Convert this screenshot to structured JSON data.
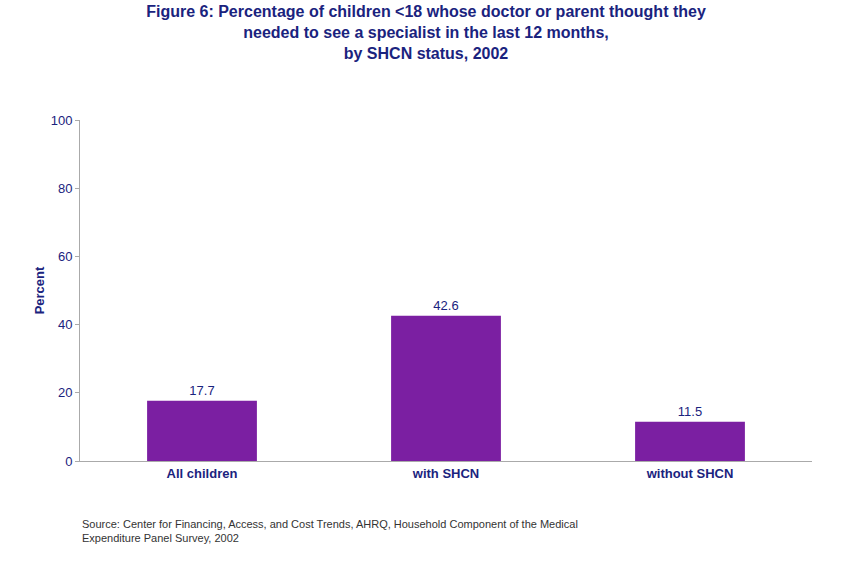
{
  "chart_data": {
    "type": "bar",
    "title": "Figure 6: Percentage of children <18 whose doctor or parent thought they\nneeded to see a specialist in the last 12 months,\nby SHCN status, 2002",
    "categories": [
      "All children",
      "with SHCN",
      "without SHCN"
    ],
    "values": [
      17.7,
      42.6,
      11.5
    ],
    "color": "#7b1fa2",
    "ylabel": "Percent",
    "ylim": [
      0,
      100
    ],
    "yticks": [
      0,
      20,
      40,
      60,
      80,
      100
    ],
    "grid": false,
    "data_labels": true,
    "annotations": [
      "Source: Center for Financing, Access, and Cost Trends, AHRQ, Household Component of the Medical\nExpenditure Panel Survey, 2002"
    ]
  }
}
